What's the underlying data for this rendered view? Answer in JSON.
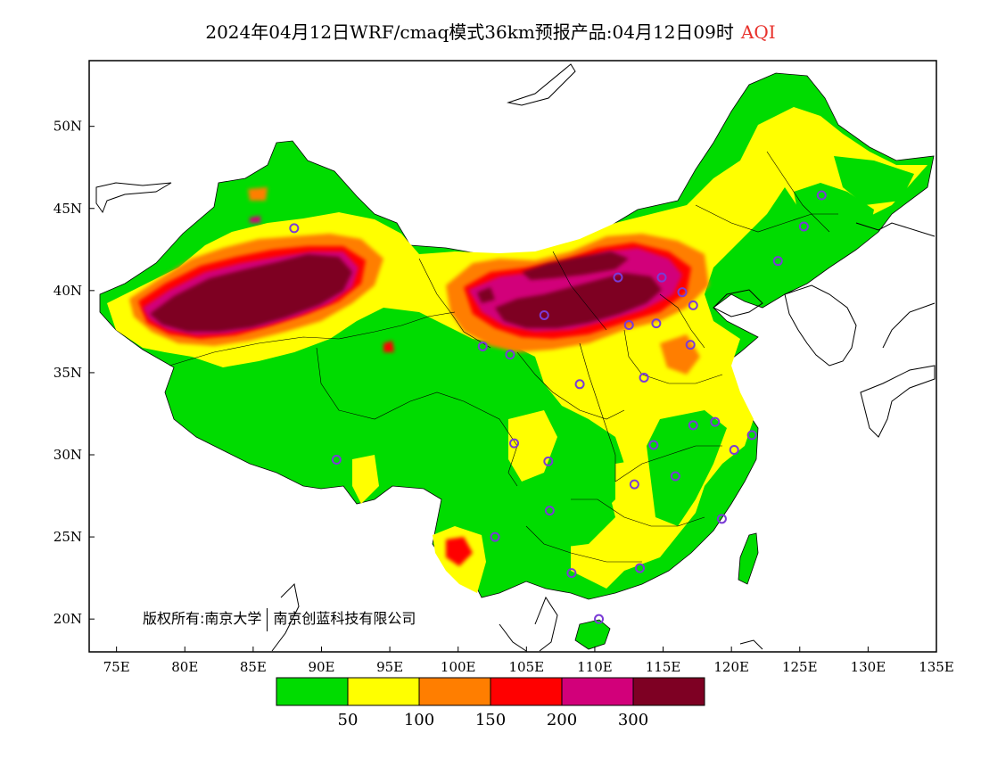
{
  "title": {
    "main": "2024年04月12日WRF/cmaq模式36km预报产品:04月12日09时",
    "variable": "AQI"
  },
  "copyright": {
    "part1": "版权所有:南京大学",
    "part2": "南京创蓝科技有限公司"
  },
  "axes": {
    "lat_ticks": [
      {
        "value": 50,
        "label": "50N"
      },
      {
        "value": 45,
        "label": "45N"
      },
      {
        "value": 40,
        "label": "40N"
      },
      {
        "value": 35,
        "label": "35N"
      },
      {
        "value": 30,
        "label": "30N"
      },
      {
        "value": 25,
        "label": "25N"
      },
      {
        "value": 20,
        "label": "20N"
      }
    ],
    "lon_ticks": [
      {
        "value": 75,
        "label": "75E"
      },
      {
        "value": 80,
        "label": "80E"
      },
      {
        "value": 85,
        "label": "85E"
      },
      {
        "value": 90,
        "label": "90E"
      },
      {
        "value": 95,
        "label": "95E"
      },
      {
        "value": 100,
        "label": "100E"
      },
      {
        "value": 105,
        "label": "105E"
      },
      {
        "value": 110,
        "label": "110E"
      },
      {
        "value": 115,
        "label": "115E"
      },
      {
        "value": 120,
        "label": "120E"
      },
      {
        "value": 125,
        "label": "125E"
      },
      {
        "value": 130,
        "label": "130E"
      },
      {
        "value": 135,
        "label": "135E"
      }
    ],
    "lon_range": [
      73,
      135
    ],
    "lat_range": [
      18,
      54
    ]
  },
  "legend": {
    "colors": [
      "#00dc00",
      "#ffff00",
      "#ff7e00",
      "#ff0000",
      "#d2007a",
      "#7e0023"
    ],
    "labels": [
      "50",
      "100",
      "150",
      "200",
      "300"
    ]
  },
  "colors": {
    "good": "#00dc00",
    "moderate": "#ffff00",
    "usg": "#ff7e00",
    "unhealthy": "#ff0000",
    "very_unhealthy": "#d2007a",
    "hazardous": "#7e0023",
    "station": "#7a3bd6"
  },
  "stations": [
    {
      "lon": 88,
      "lat": 43.8
    },
    {
      "lon": 91.1,
      "lat": 29.7
    },
    {
      "lon": 101.8,
      "lat": 36.6
    },
    {
      "lon": 103.8,
      "lat": 36.1
    },
    {
      "lon": 104.1,
      "lat": 30.7
    },
    {
      "lon": 106.6,
      "lat": 29.6
    },
    {
      "lon": 106.7,
      "lat": 26.6
    },
    {
      "lon": 102.7,
      "lat": 25.0
    },
    {
      "lon": 108.3,
      "lat": 22.8
    },
    {
      "lon": 110.3,
      "lat": 20.0
    },
    {
      "lon": 113.3,
      "lat": 23.1
    },
    {
      "lon": 112.9,
      "lat": 28.2
    },
    {
      "lon": 114.3,
      "lat": 30.6
    },
    {
      "lon": 115.9,
      "lat": 28.7
    },
    {
      "lon": 119.3,
      "lat": 26.1
    },
    {
      "lon": 120.2,
      "lat": 30.3
    },
    {
      "lon": 121.5,
      "lat": 31.2
    },
    {
      "lon": 118.8,
      "lat": 32.0
    },
    {
      "lon": 117.2,
      "lat": 31.8
    },
    {
      "lon": 113.6,
      "lat": 34.7
    },
    {
      "lon": 108.9,
      "lat": 34.3
    },
    {
      "lon": 117.0,
      "lat": 36.7
    },
    {
      "lon": 114.5,
      "lat": 38.0
    },
    {
      "lon": 112.5,
      "lat": 37.9
    },
    {
      "lon": 117.2,
      "lat": 39.1
    },
    {
      "lon": 116.4,
      "lat": 39.9
    },
    {
      "lon": 111.7,
      "lat": 40.8
    },
    {
      "lon": 106.3,
      "lat": 38.5
    },
    {
      "lon": 123.4,
      "lat": 41.8
    },
    {
      "lon": 125.3,
      "lat": 43.9
    },
    {
      "lon": 126.6,
      "lat": 45.8
    },
    {
      "lon": 114.9,
      "lat": 40.8
    }
  ]
}
